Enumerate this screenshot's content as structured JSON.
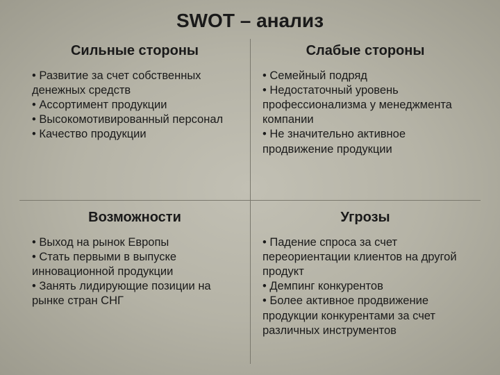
{
  "title": "SWOT – анализ",
  "quadrants": {
    "strengths": {
      "heading": "Сильные стороны",
      "items": [
        "Развитие за счет собственных денежных средств",
        "Ассортимент продукции",
        "Высокомотивированный персонал",
        "Качество продукции"
      ]
    },
    "weaknesses": {
      "heading": "Слабые стороны",
      "items": [
        "Семейный подряд",
        "Недостаточный уровень профессионализма у менеджмента компании",
        "Не значительно активное продвижение продукции"
      ]
    },
    "opportunities": {
      "heading": "Возможности",
      "items": [
        "Выход на рынок Европы",
        "Стать первыми в выпуске инновационной продукции",
        "Занять лидирующие позиции на рынке стран СНГ"
      ]
    },
    "threats": {
      "heading": "Угрозы",
      "items": [
        "Падение спроса за счет переориентации клиентов на другой продукт",
        "Демпинг конкурентов",
        "Более активное продвижение продукции конкурентами за счет различных инструментов"
      ]
    }
  },
  "style": {
    "background_gradient": [
      "#c2c0b4",
      "#b5b3a6",
      "#9d9b8e"
    ],
    "divider_color": "#7a786d",
    "text_color": "#1a1a1a",
    "title_fontsize": 28,
    "heading_fontsize": 20,
    "body_fontsize": 16.5,
    "bullet": "•"
  }
}
